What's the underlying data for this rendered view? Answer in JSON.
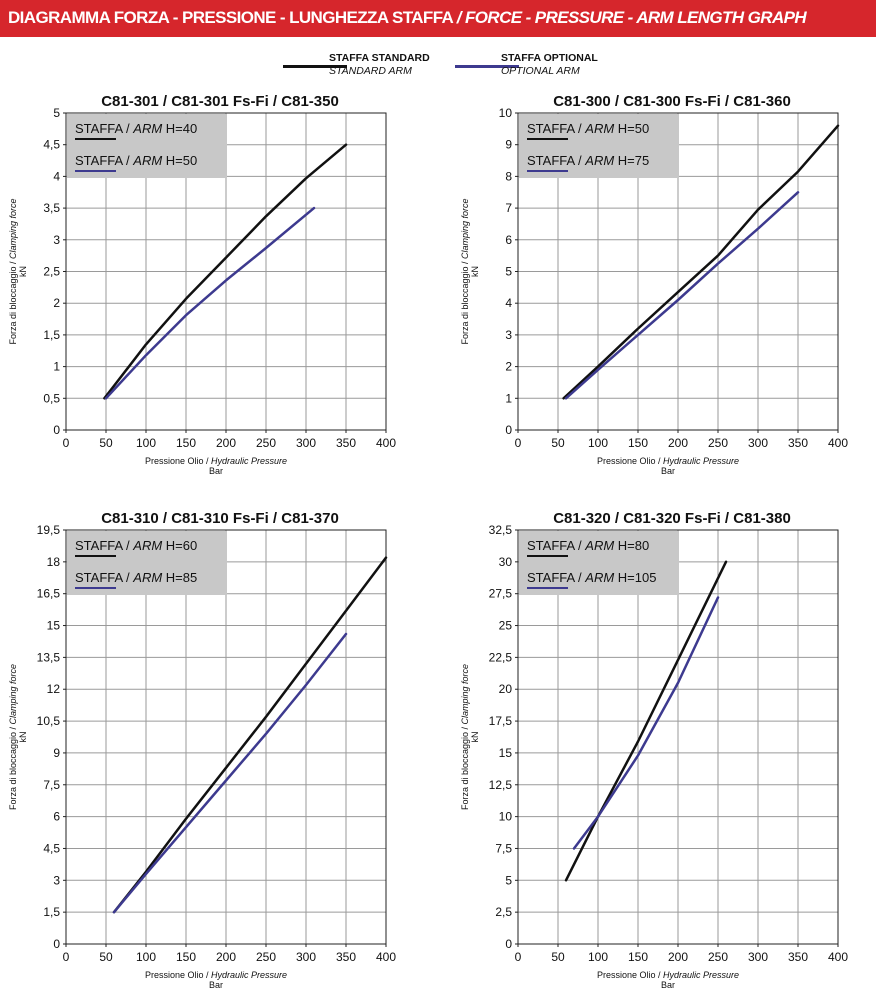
{
  "header": {
    "title_it": "DIAGRAMMA FORZA - PRESSIONE - LUNGHEZZA STAFFA",
    "separator": "/",
    "title_en": "FORCE - PRESSURE - ARM LENGTH GRAPH",
    "background_color": "#d6262c"
  },
  "legend": {
    "standard": {
      "label_it": "STAFFA STANDARD",
      "label_en": "STANDARD ARM",
      "color": "#111111"
    },
    "optional": {
      "label_it": "STAFFA OPTIONAL",
      "label_en": "OPTIONAL ARM",
      "color": "#3d3a8f"
    }
  },
  "chart_data": [
    {
      "type": "line",
      "title": "C81-301 / C81-301 Fs-Fi / C81-350",
      "xlabel_it": "Pressione Olio",
      "xlabel_en": "Hydraulic Pressure",
      "xunit": "Bar",
      "ylabel_it": "Forza di bloccaggio",
      "ylabel_en": "Clamping force",
      "yunit": "kN",
      "xlim": [
        0,
        400
      ],
      "ylim": [
        0,
        5
      ],
      "xticks": [
        "0",
        "50",
        "100",
        "150",
        "200",
        "250",
        "300",
        "350",
        "400"
      ],
      "yticks": [
        "0",
        "0,5",
        "1",
        "1,5",
        "2",
        "2,5",
        "3",
        "3,5",
        "4",
        "4,5",
        "5"
      ],
      "grid": true,
      "legend_box": [
        {
          "staffa": "STAFFA",
          "arm": "ARM",
          "h": "H=40"
        },
        {
          "staffa": "STAFFA",
          "arm": "ARM",
          "h": "H=50"
        }
      ],
      "series": [
        {
          "kind": "standard",
          "x": [
            48,
            100,
            150,
            200,
            250,
            300,
            350
          ],
          "y": [
            0.5,
            1.35,
            2.07,
            2.72,
            3.37,
            3.97,
            4.5
          ]
        },
        {
          "kind": "optional",
          "x": [
            50,
            100,
            150,
            200,
            250,
            310
          ],
          "y": [
            0.5,
            1.18,
            1.81,
            2.36,
            2.87,
            3.5
          ]
        }
      ]
    },
    {
      "type": "line",
      "title": "C81-300 / C81-300 Fs-Fi / C81-360",
      "xlabel_it": "Pressione Olio",
      "xlabel_en": "Hydraulic Pressure",
      "xunit": "Bar",
      "ylabel_it": "Forza di bloccaggio",
      "ylabel_en": "Clamping force",
      "yunit": "kN",
      "xlim": [
        0,
        400
      ],
      "ylim": [
        0,
        10
      ],
      "xticks": [
        "0",
        "50",
        "100",
        "150",
        "200",
        "250",
        "300",
        "350",
        "400"
      ],
      "yticks": [
        "0",
        "1",
        "2",
        "3",
        "4",
        "5",
        "6",
        "7",
        "8",
        "9",
        "10"
      ],
      "grid": true,
      "legend_box": [
        {
          "staffa": "STAFFA",
          "arm": "ARM",
          "h": "H=50"
        },
        {
          "staffa": "STAFFA",
          "arm": "ARM",
          "h": "H=75"
        }
      ],
      "series": [
        {
          "kind": "standard",
          "x": [
            57,
            100,
            150,
            200,
            250,
            300,
            350,
            400
          ],
          "y": [
            1.0,
            2.0,
            3.2,
            4.35,
            5.5,
            6.95,
            8.15,
            9.6
          ]
        },
        {
          "kind": "optional",
          "x": [
            60,
            100,
            150,
            200,
            250,
            300,
            350
          ],
          "y": [
            1.0,
            1.9,
            3.0,
            4.1,
            5.25,
            6.35,
            7.5
          ]
        }
      ]
    },
    {
      "type": "line",
      "title": "C81-310 / C81-310 Fs-Fi / C81-370",
      "xlabel_it": "Pressione Olio",
      "xlabel_en": "Hydraulic Pressure",
      "xunit": "Bar",
      "ylabel_it": "Forza di bloccaggio",
      "ylabel_en": "Clamping force",
      "yunit": "kN",
      "xlim": [
        0,
        400
      ],
      "ylim": [
        0,
        19.5
      ],
      "xticks": [
        "0",
        "50",
        "100",
        "150",
        "200",
        "250",
        "300",
        "350",
        "400"
      ],
      "yticks": [
        "0",
        "1,5",
        "3",
        "4,5",
        "6",
        "7,5",
        "9",
        "10,5",
        "12",
        "13,5",
        "15",
        "16,5",
        "18",
        "19,5"
      ],
      "grid": true,
      "legend_box": [
        {
          "staffa": "STAFFA",
          "arm": "ARM",
          "h": "H=60"
        },
        {
          "staffa": "STAFFA",
          "arm": "ARM",
          "h": "H=85"
        }
      ],
      "series": [
        {
          "kind": "standard",
          "x": [
            60,
            100,
            150,
            200,
            250,
            300,
            350,
            400
          ],
          "y": [
            1.5,
            3.4,
            5.9,
            8.3,
            10.7,
            13.2,
            15.7,
            18.2
          ]
        },
        {
          "kind": "optional",
          "x": [
            60,
            100,
            150,
            200,
            250,
            300,
            350
          ],
          "y": [
            1.5,
            3.3,
            5.5,
            7.7,
            9.9,
            12.2,
            14.6
          ]
        }
      ]
    },
    {
      "type": "line",
      "title": "C81-320 / C81-320 Fs-Fi / C81-380",
      "xlabel_it": "Pressione Olio",
      "xlabel_en": "Hydraulic Pressure",
      "xunit": "Bar",
      "ylabel_it": "Forza di bloccaggio",
      "ylabel_en": "Clamping force",
      "yunit": "kN",
      "xlim": [
        0,
        400
      ],
      "ylim": [
        0,
        32.5
      ],
      "xticks": [
        "0",
        "50",
        "100",
        "150",
        "200",
        "250",
        "300",
        "350",
        "400"
      ],
      "yticks": [
        "0",
        "2,5",
        "5",
        "7,5",
        "10",
        "12,5",
        "15",
        "17,5",
        "20",
        "22,5",
        "25",
        "27,5",
        "30",
        "32,5"
      ],
      "grid": true,
      "legend_box": [
        {
          "staffa": "STAFFA",
          "arm": "ARM",
          "h": "H=80"
        },
        {
          "staffa": "STAFFA",
          "arm": "ARM",
          "h": "H=105"
        }
      ],
      "series": [
        {
          "kind": "standard",
          "x": [
            60,
            100,
            150,
            200,
            260
          ],
          "y": [
            5.0,
            10.0,
            15.9,
            22.3,
            30.0
          ]
        },
        {
          "kind": "optional",
          "x": [
            70,
            100,
            150,
            200,
            250
          ],
          "y": [
            7.5,
            10.0,
            14.8,
            20.5,
            27.2
          ]
        }
      ]
    }
  ]
}
